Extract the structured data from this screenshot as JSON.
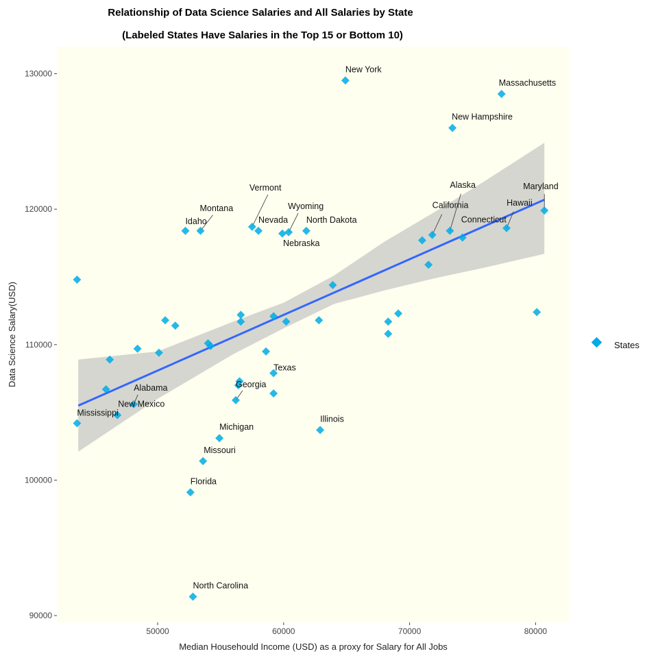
{
  "chart_data": {
    "type": "scatter",
    "title": "Relationship of Data Science Salaries and All Salaries by State",
    "subtitle": "(Labeled States Have Salaries in the Top 15 or Bottom 10)",
    "xlabel": "Median Househould Income (USD) as a proxy for Salary for All Jobs",
    "ylabel": "Data Science Salary(USD)",
    "xlim": [
      42000,
      82700
    ],
    "ylim": [
      89500,
      132000
    ],
    "xticks": [
      50000,
      60000,
      70000,
      80000
    ],
    "yticks": [
      90000,
      100000,
      110000,
      120000,
      130000
    ],
    "grid": false,
    "legend": {
      "position": "right",
      "entries": [
        "States"
      ]
    },
    "colors": {
      "points": "#00ABE6",
      "trend": "#3366FF",
      "ribbon": "#BBBBBB",
      "panel": "#FFFFF0"
    },
    "trend_line": {
      "x": [
        43700,
        80700
      ],
      "y": [
        105500,
        120700
      ]
    },
    "confidence_band": {
      "x": [
        43700,
        50000,
        56000,
        60000,
        64000,
        68000,
        72000,
        76000,
        80700
      ],
      "lower": [
        102100,
        106000,
        109300,
        111200,
        113000,
        114000,
        114900,
        115700,
        116700
      ],
      "upper": [
        108900,
        109500,
        111700,
        113100,
        115100,
        117600,
        119800,
        122100,
        124900
      ]
    },
    "points": [
      {
        "x": 64900,
        "y": 129500,
        "label": "New York"
      },
      {
        "x": 77300,
        "y": 128500,
        "label": "Massachusetts"
      },
      {
        "x": 73400,
        "y": 126000,
        "label": "New Hampshire"
      },
      {
        "x": 80700,
        "y": 119900,
        "label": "Maryland"
      },
      {
        "x": 73200,
        "y": 118400,
        "label": "Alaska"
      },
      {
        "x": 71800,
        "y": 118100,
        "label": "California"
      },
      {
        "x": 77700,
        "y": 118600,
        "label": "Hawaii"
      },
      {
        "x": 74200,
        "y": 117900,
        "label": "Connecticut"
      },
      {
        "x": 57500,
        "y": 118700,
        "label": "Vermont"
      },
      {
        "x": 53400,
        "y": 118400,
        "label": "Montana"
      },
      {
        "x": 52200,
        "y": 118400,
        "label": "Idaho"
      },
      {
        "x": 58000,
        "y": 118400,
        "label": "Nevada"
      },
      {
        "x": 60400,
        "y": 118300,
        "label": "Wyoming"
      },
      {
        "x": 61800,
        "y": 118400,
        "label": "North Dakota"
      },
      {
        "x": 59900,
        "y": 118200,
        "label": "Nebraska"
      },
      {
        "x": 59200,
        "y": 107900,
        "label": "Texas"
      },
      {
        "x": 56200,
        "y": 105900,
        "label": "Georgia"
      },
      {
        "x": 48100,
        "y": 105600,
        "label": "Alabama"
      },
      {
        "x": 46800,
        "y": 104800,
        "label": "New Mexico"
      },
      {
        "x": 43600,
        "y": 104200,
        "label": "Mississippi"
      },
      {
        "x": 62900,
        "y": 103700,
        "label": "Illinois"
      },
      {
        "x": 54900,
        "y": 103100,
        "label": "Michigan"
      },
      {
        "x": 53600,
        "y": 101400,
        "label": "Missouri"
      },
      {
        "x": 52600,
        "y": 99100,
        "label": "Florida"
      },
      {
        "x": 52800,
        "y": 91400,
        "label": "North Carolina"
      },
      {
        "x": 43600,
        "y": 114800
      },
      {
        "x": 46200,
        "y": 108900
      },
      {
        "x": 48400,
        "y": 109700
      },
      {
        "x": 45900,
        "y": 106700
      },
      {
        "x": 50100,
        "y": 109400
      },
      {
        "x": 50600,
        "y": 111800
      },
      {
        "x": 51400,
        "y": 111400
      },
      {
        "x": 54000,
        "y": 110100
      },
      {
        "x": 54200,
        "y": 109900
      },
      {
        "x": 56600,
        "y": 112200
      },
      {
        "x": 56600,
        "y": 111700
      },
      {
        "x": 56500,
        "y": 107300
      },
      {
        "x": 56400,
        "y": 107000
      },
      {
        "x": 58600,
        "y": 109500
      },
      {
        "x": 59200,
        "y": 112100
      },
      {
        "x": 60200,
        "y": 111700
      },
      {
        "x": 59200,
        "y": 106400
      },
      {
        "x": 62800,
        "y": 111800
      },
      {
        "x": 63900,
        "y": 114400
      },
      {
        "x": 68300,
        "y": 111700
      },
      {
        "x": 68300,
        "y": 110800
      },
      {
        "x": 69100,
        "y": 112300
      },
      {
        "x": 71000,
        "y": 117700
      },
      {
        "x": 71500,
        "y": 115900
      },
      {
        "x": 80100,
        "y": 112400
      }
    ],
    "label_placements": {
      "New York": {
        "dx": 0,
        "dy": -12,
        "anchor": "start",
        "lx": 0,
        "ly": 0
      },
      "Massachusetts": {
        "dx": -4,
        "dy": -12,
        "anchor": "start",
        "lx": 0,
        "ly": 0
      },
      "New Hampshire": {
        "dx": -1,
        "dy": -12,
        "anchor": "start",
        "lx": 0,
        "ly": 0
      },
      "Maryland": {
        "dx": -31,
        "dy": -31,
        "anchor": "start",
        "lx": 0,
        "ly": -24
      },
      "Alaska": {
        "dx": 0,
        "dy": -63,
        "anchor": "start",
        "lx": 16,
        "ly": -54
      },
      "California": {
        "dx": 0,
        "dy": -39,
        "anchor": "start",
        "lx": 14,
        "ly": -30
      },
      "Hawaii": {
        "dx": 0,
        "dy": -33,
        "anchor": "start",
        "lx": 10,
        "ly": -24
      },
      "Connecticut": {
        "dx": -2,
        "dy": -22,
        "anchor": "start",
        "lx": 0,
        "ly": 0
      },
      "Vermont": {
        "dx": -4,
        "dy": -53,
        "anchor": "start",
        "lx": 23,
        "ly": -47
      },
      "Montana": {
        "dx": -1,
        "dy": -29,
        "anchor": "start",
        "lx": 18,
        "ly": -23
      },
      "Idaho": {
        "dx": 0,
        "dy": -10,
        "anchor": "start",
        "lx": 0,
        "ly": 0
      },
      "Nevada": {
        "dx": 0,
        "dy": -12,
        "anchor": "start",
        "lx": 0,
        "ly": 0
      },
      "Wyoming": {
        "dx": -1,
        "dy": -34,
        "anchor": "start",
        "lx": 14,
        "ly": -28
      },
      "North Dakota": {
        "dx": 0,
        "dy": -12,
        "anchor": "start",
        "lx": 0,
        "ly": 0
      },
      "Nebraska": {
        "dx": 1,
        "dy": 18,
        "anchor": "start",
        "lx": 0,
        "ly": 0
      },
      "Texas": {
        "dx": 0,
        "dy": -4,
        "anchor": "start",
        "lx": 0,
        "ly": 0
      },
      "Georgia": {
        "dx": 0,
        "dy": -19,
        "anchor": "start",
        "lx": 10,
        "ly": -14
      },
      "Alabama": {
        "dx": 0,
        "dy": -20,
        "anchor": "start",
        "lx": 6,
        "ly": -14
      },
      "New Mexico": {
        "dx": 1,
        "dy": -12,
        "anchor": "start",
        "lx": 0,
        "ly": 0
      },
      "Mississippi": {
        "dx": 0,
        "dy": -11,
        "anchor": "start",
        "lx": 0,
        "ly": 0
      },
      "Illinois": {
        "dx": 0,
        "dy": -12,
        "anchor": "start",
        "lx": 0,
        "ly": 0
      },
      "Michigan": {
        "dx": 0,
        "dy": -12,
        "anchor": "start",
        "lx": 0,
        "ly": 0
      },
      "Missouri": {
        "dx": 1,
        "dy": -12,
        "anchor": "start",
        "lx": 0,
        "ly": 0
      },
      "Florida": {
        "dx": 0,
        "dy": -12,
        "anchor": "start",
        "lx": 0,
        "ly": 0
      },
      "North Carolina": {
        "dx": 0,
        "dy": -12,
        "anchor": "start",
        "lx": 0,
        "ly": 0
      }
    }
  }
}
